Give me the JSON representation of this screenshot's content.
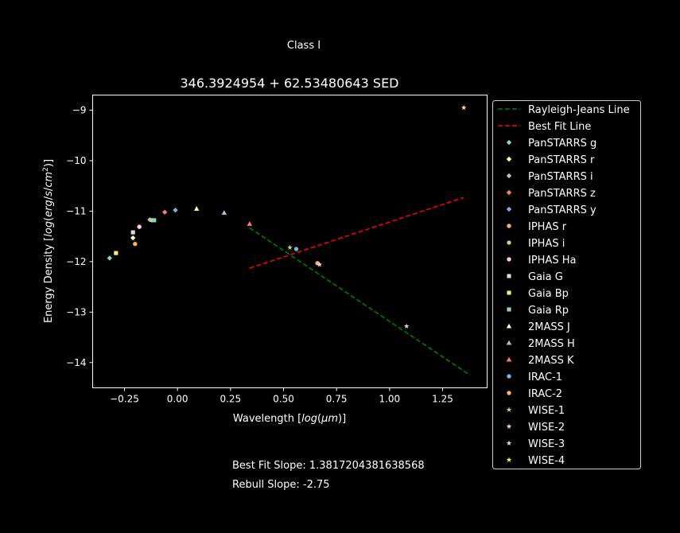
{
  "page": {
    "suptitle": "Class I",
    "fit_slope_text": "Best Fit Slope: 1.3817204381638568",
    "rebull_slope_text": "Rebull Slope: -2.75"
  },
  "chart_data": {
    "type": "scatter",
    "title": "346.3924954 + 62.53480643 SED",
    "xlabel": "Wavelength [log(μm)]",
    "ylabel": "Energy Density [log(erg/s/cm²)]",
    "xlim": [
      -0.4,
      1.46
    ],
    "ylim": [
      -14.5,
      -8.7
    ],
    "xticks": [
      -0.25,
      0.0,
      0.25,
      0.5,
      0.75,
      1.0,
      1.25
    ],
    "xtick_labels": [
      "−0.25",
      "0.00",
      "0.25",
      "0.50",
      "0.75",
      "1.00",
      "1.25"
    ],
    "yticks": [
      -14,
      -13,
      -12,
      -11,
      -10,
      -9
    ],
    "ytick_labels": [
      "−14",
      "−13",
      "−12",
      "−11",
      "−10",
      "−9"
    ],
    "grid": false,
    "legend_placement": "outside right",
    "lines": [
      {
        "name": "Rayleigh-Jeans Line",
        "color": "#008000",
        "dash": "dashed",
        "x": [
          0.34,
          1.38
        ],
        "y": [
          -11.33,
          -14.25
        ]
      },
      {
        "name": "Best Fit Line",
        "color": "#ff0000",
        "dash": "dashed",
        "x": [
          0.34,
          1.35
        ],
        "y": [
          -12.13,
          -10.73
        ]
      }
    ],
    "series": [
      {
        "name": "PanSTARRS g",
        "color": "#8dd3c7",
        "marker": "diamond",
        "x": [
          -0.32
        ],
        "y": [
          -11.93
        ]
      },
      {
        "name": "PanSTARRS r",
        "color": "#ffffb3",
        "marker": "diamond",
        "x": [
          -0.21
        ],
        "y": [
          -11.53
        ]
      },
      {
        "name": "PanSTARRS i",
        "color": "#bebada",
        "marker": "diamond",
        "x": [
          -0.13
        ],
        "y": [
          -11.17
        ]
      },
      {
        "name": "PanSTARRS z",
        "color": "#fb8072",
        "marker": "diamond",
        "x": [
          -0.06
        ],
        "y": [
          -11.02
        ]
      },
      {
        "name": "PanSTARRS y",
        "color": "#80b1d3",
        "marker": "diamond",
        "x": [
          -0.01
        ],
        "y": [
          -10.98
        ]
      },
      {
        "name": "IPHAS r",
        "color": "#fdb462",
        "marker": "circle",
        "x": [
          -0.2
        ],
        "y": [
          -11.65
        ]
      },
      {
        "name": "IPHAS i",
        "color": "#b3de69",
        "marker": "circle",
        "x": [
          -0.12
        ],
        "y": [
          -11.18
        ]
      },
      {
        "name": "IPHAS Ha",
        "color": "#fccde5",
        "marker": "circle",
        "x": [
          -0.18
        ],
        "y": [
          -11.31
        ]
      },
      {
        "name": "Gaia G",
        "color": "#d9d9d9",
        "marker": "square",
        "x": [
          -0.21
        ],
        "y": [
          -11.42
        ]
      },
      {
        "name": "Gaia Bp",
        "color": "#ffed6f",
        "marker": "square",
        "x": [
          -0.29
        ],
        "y": [
          -11.83
        ]
      },
      {
        "name": "Gaia Rp",
        "color": "#8dd3c7",
        "marker": "square",
        "x": [
          -0.11
        ],
        "y": [
          -11.18
        ]
      },
      {
        "name": "2MASS J",
        "color": "#ffffb3",
        "marker": "triangle",
        "x": [
          0.09
        ],
        "y": [
          -10.95
        ]
      },
      {
        "name": "2MASS H",
        "color": "#bebada",
        "marker": "triangle",
        "x": [
          0.22
        ],
        "y": [
          -11.03
        ]
      },
      {
        "name": "2MASS K",
        "color": "#fb8072",
        "marker": "triangle",
        "x": [
          0.34
        ],
        "y": [
          -11.25
        ]
      },
      {
        "name": "IRAC-1",
        "color": "#80b1d3",
        "marker": "circle",
        "x": [
          0.56
        ],
        "y": [
          -11.75
        ]
      },
      {
        "name": "IRAC-2",
        "color": "#fdb462",
        "marker": "circle",
        "x": [
          0.66
        ],
        "y": [
          -12.03
        ]
      },
      {
        "name": "WISE-1",
        "color": "#b3de69",
        "marker": "star",
        "x": [
          0.53
        ],
        "y": [
          -11.72
        ]
      },
      {
        "name": "WISE-2",
        "color": "#fccde5",
        "marker": "star",
        "x": [
          0.67
        ],
        "y": [
          -12.06
        ]
      },
      {
        "name": "WISE-3",
        "color": "#d9d9d9",
        "marker": "star",
        "x": [
          1.08
        ],
        "y": [
          -13.28
        ]
      },
      {
        "name": "WISE-4",
        "color": "#ffed6f",
        "marker": "star",
        "x": [
          1.35
        ],
        "y": [
          -8.95
        ]
      }
    ]
  }
}
